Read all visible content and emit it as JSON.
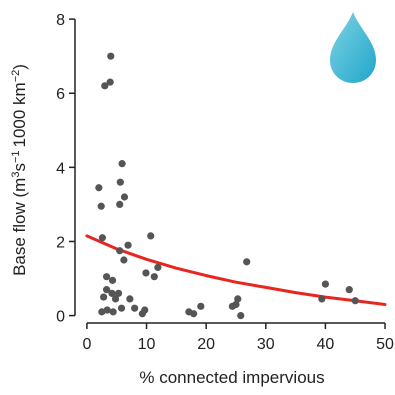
{
  "chart_data": {
    "type": "scatter",
    "xlabel": "% connected impervious",
    "ylabel_main": "Base flow (m",
    "ylabel_sup1": "3",
    "ylabel_mid": "s",
    "ylabel_sup2": "−1",
    "ylabel_mid2": "1000 km",
    "ylabel_sup3": "−2",
    "ylabel_end": ")",
    "xlim": [
      -2,
      51
    ],
    "ylim": [
      -0.2,
      8.3
    ],
    "x_ticks": [
      0,
      10,
      20,
      30,
      40,
      50
    ],
    "x_tick_labels": [
      "0",
      "10",
      "20",
      "30",
      "40",
      "50"
    ],
    "y_ticks": [
      0,
      2,
      4,
      6,
      8
    ],
    "y_tick_labels": [
      "0",
      "2",
      "4",
      "6",
      "8"
    ],
    "grid": false,
    "legend": "none",
    "colors": {
      "points": "#555555",
      "fit": "#e8251f",
      "axis": "#222222",
      "drop_top": "#7fd3e3",
      "drop_bottom": "#1fa6cc"
    },
    "icon": "water-drop-icon",
    "points": [
      {
        "x": 4.0,
        "y": 7.0
      },
      {
        "x": 3.0,
        "y": 6.2
      },
      {
        "x": 3.9,
        "y": 6.3
      },
      {
        "x": 5.9,
        "y": 4.1
      },
      {
        "x": 5.6,
        "y": 3.6
      },
      {
        "x": 6.3,
        "y": 3.2
      },
      {
        "x": 2.0,
        "y": 3.45
      },
      {
        "x": 5.5,
        "y": 3.0
      },
      {
        "x": 2.4,
        "y": 2.95
      },
      {
        "x": 2.6,
        "y": 2.1
      },
      {
        "x": 10.7,
        "y": 2.15
      },
      {
        "x": 6.9,
        "y": 1.9
      },
      {
        "x": 5.5,
        "y": 1.75
      },
      {
        "x": 6.2,
        "y": 1.5
      },
      {
        "x": 26.8,
        "y": 1.45
      },
      {
        "x": 11.9,
        "y": 1.3
      },
      {
        "x": 9.9,
        "y": 1.15
      },
      {
        "x": 11.3,
        "y": 1.05
      },
      {
        "x": 3.3,
        "y": 1.05
      },
      {
        "x": 4.3,
        "y": 0.95
      },
      {
        "x": 40.0,
        "y": 0.85
      },
      {
        "x": 3.3,
        "y": 0.7
      },
      {
        "x": 44.0,
        "y": 0.7
      },
      {
        "x": 4.2,
        "y": 0.6
      },
      {
        "x": 5.3,
        "y": 0.6
      },
      {
        "x": 2.8,
        "y": 0.5
      },
      {
        "x": 4.8,
        "y": 0.45
      },
      {
        "x": 7.2,
        "y": 0.45
      },
      {
        "x": 25.3,
        "y": 0.45
      },
      {
        "x": 39.4,
        "y": 0.45
      },
      {
        "x": 45.0,
        "y": 0.4
      },
      {
        "x": 19.1,
        "y": 0.25
      },
      {
        "x": 25.0,
        "y": 0.3
      },
      {
        "x": 5.8,
        "y": 0.2
      },
      {
        "x": 8.0,
        "y": 0.2
      },
      {
        "x": 9.7,
        "y": 0.15
      },
      {
        "x": 3.4,
        "y": 0.15
      },
      {
        "x": 2.5,
        "y": 0.1
      },
      {
        "x": 4.4,
        "y": 0.1
      },
      {
        "x": 17.1,
        "y": 0.1
      },
      {
        "x": 17.9,
        "y": 0.05
      },
      {
        "x": 9.3,
        "y": 0.05
      },
      {
        "x": 24.4,
        "y": 0.25
      },
      {
        "x": 25.8,
        "y": 0.0
      }
    ],
    "fit_curve": {
      "x": [
        0,
        5,
        10,
        15,
        20,
        25,
        30,
        35,
        40,
        45,
        50
      ],
      "y": [
        2.15,
        1.8,
        1.52,
        1.28,
        1.08,
        0.9,
        0.76,
        0.62,
        0.5,
        0.4,
        0.3
      ]
    }
  }
}
